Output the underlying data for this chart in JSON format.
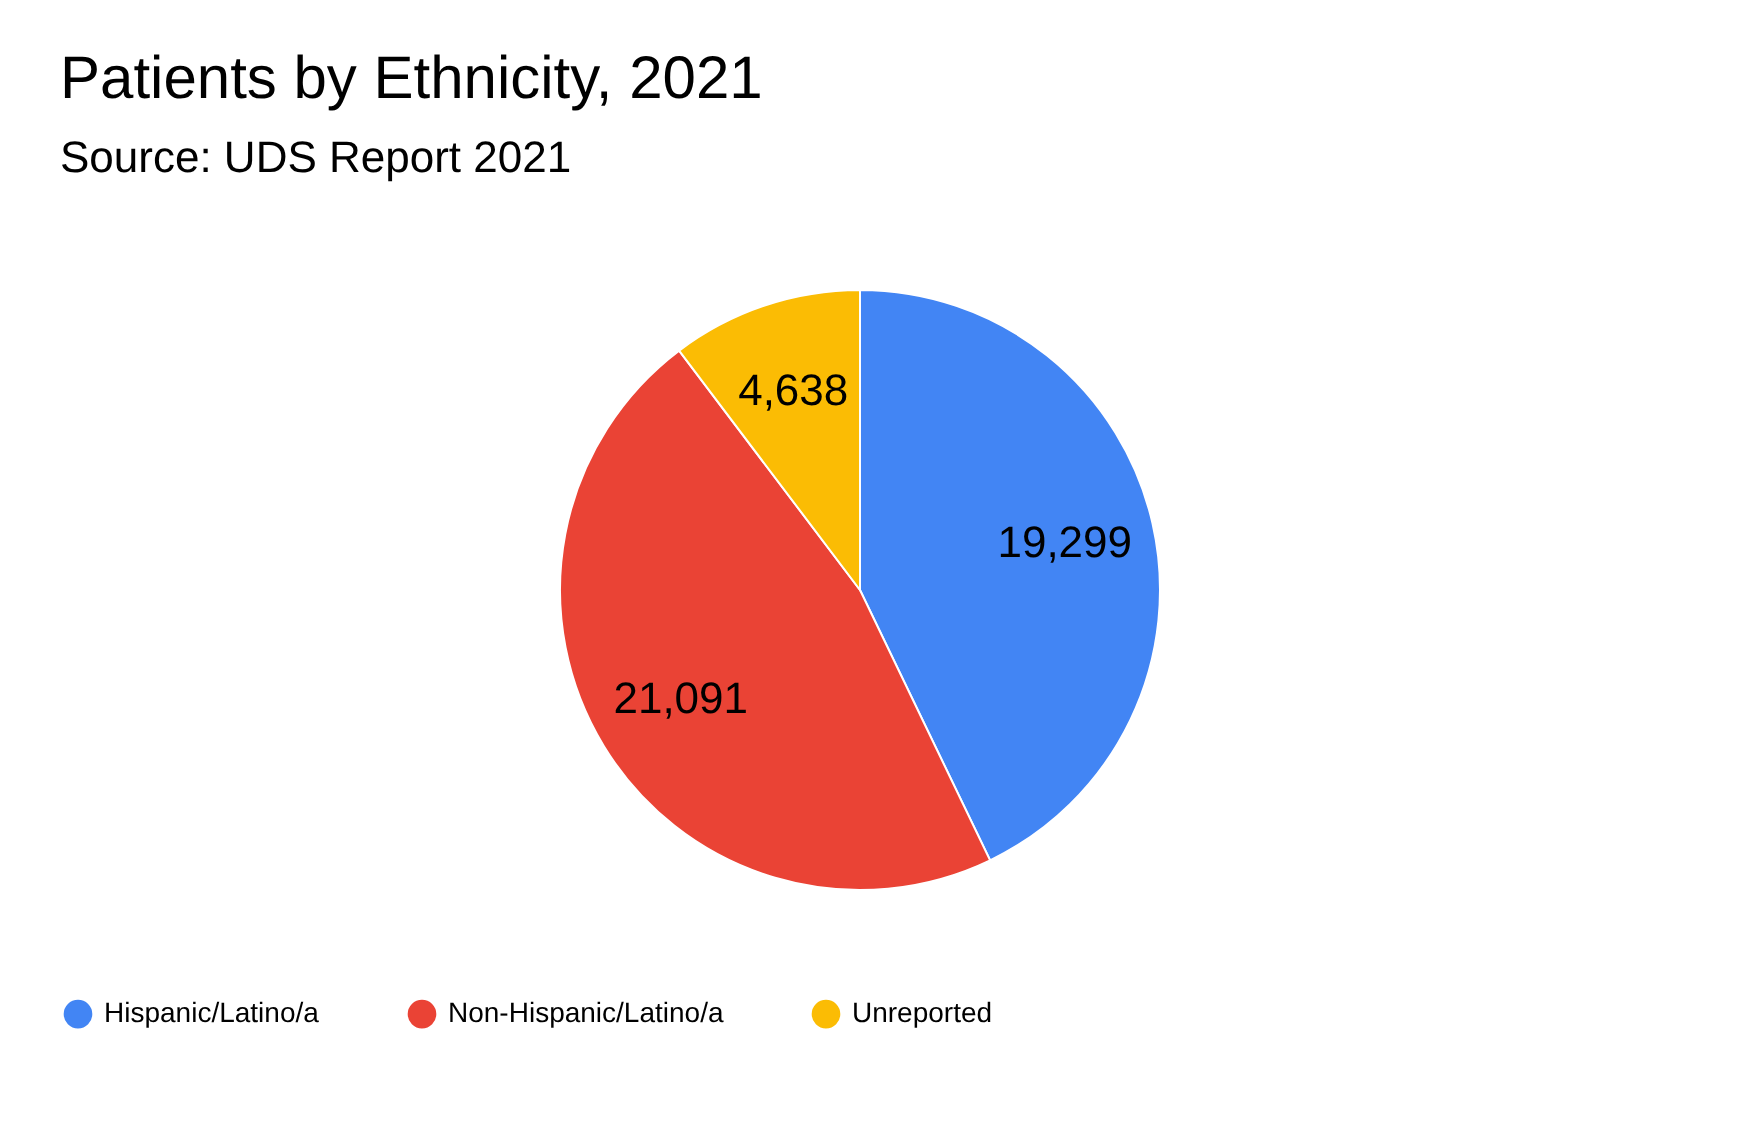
{
  "chart_data": {
    "type": "pie",
    "title": "Patients by Ethnicity, 2021",
    "subtitle": "Source: UDS Report 2021",
    "categories": [
      "Hispanic/Latino/a",
      "Non-Hispanic/Latino/a",
      "Unreported"
    ],
    "values": [
      19299,
      21091,
      4638
    ],
    "colors": [
      "#4285f4",
      "#ea4335",
      "#fbbc04"
    ],
    "value_labels": [
      "19,299",
      "21,091",
      "4,638"
    ],
    "legend": "bottom"
  }
}
